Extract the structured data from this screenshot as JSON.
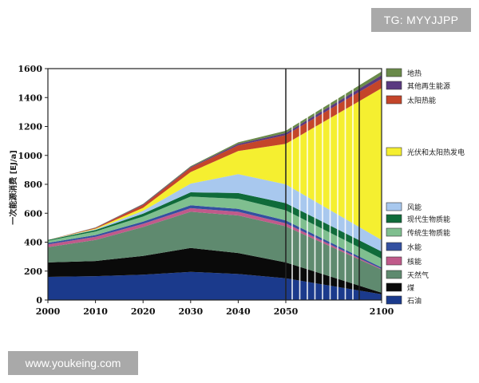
{
  "watermarks": {
    "top": "TG: MYYJJPP",
    "bottom": "www.youkeing.com"
  },
  "chart_data": {
    "type": "area",
    "stacked": true,
    "ylabel": "一次能源消费 [EJ/a]",
    "xlabel": "",
    "title": "",
    "x_ticks": [
      2000,
      2010,
      2020,
      2030,
      2040,
      2050,
      2100
    ],
    "y_ticks": [
      0,
      200,
      400,
      600,
      800,
      1000,
      1200,
      1400,
      1600
    ],
    "ylim": [
      0,
      1600
    ],
    "highlight_period": [
      2050,
      2100
    ],
    "x": [
      2000,
      2010,
      2020,
      2030,
      2040,
      2050,
      2100
    ],
    "series": [
      {
        "name": "石油",
        "color": "#1b3a8c",
        "values": [
          160,
          165,
          175,
          195,
          180,
          150,
          40
        ]
      },
      {
        "name": "煤",
        "color": "#0a0a0a",
        "values": [
          100,
          105,
          130,
          165,
          145,
          110,
          10
        ]
      },
      {
        "name": "天然气",
        "color": "#5f8a6f",
        "values": [
          105,
          145,
          200,
          250,
          260,
          250,
          160
        ]
      },
      {
        "name": "核能",
        "color": "#c05a8a",
        "values": [
          20,
          22,
          22,
          25,
          25,
          20,
          5
        ]
      },
      {
        "name": "水能",
        "color": "#3350a0",
        "values": [
          10,
          12,
          15,
          20,
          20,
          20,
          10
        ]
      },
      {
        "name": "传统生物质能",
        "color": "#7fbf8f",
        "values": [
          15,
          25,
          35,
          60,
          70,
          70,
          60
        ]
      },
      {
        "name": "现代生物质能",
        "color": "#0f6b3a",
        "values": [
          5,
          10,
          20,
          30,
          40,
          50,
          50
        ]
      },
      {
        "name": "风能",
        "color": "#a8c8ee",
        "values": [
          0,
          5,
          20,
          60,
          130,
          130,
          80
        ]
      },
      {
        "name": "光伏和太阳热发电",
        "color": "#f5ef30",
        "values": [
          0,
          5,
          20,
          80,
          160,
          280,
          1050
        ]
      },
      {
        "name": "太阳热能",
        "color": "#c4452a",
        "values": [
          0,
          5,
          20,
          30,
          40,
          60,
          65
        ]
      },
      {
        "name": "其他再生能源",
        "color": "#5a3a80",
        "values": [
          0,
          2,
          5,
          5,
          10,
          15,
          25
        ]
      },
      {
        "name": "地热",
        "color": "#6a8a4a",
        "values": [
          0,
          1,
          3,
          5,
          10,
          15,
          25
        ]
      }
    ],
    "legend": {
      "position": "right",
      "entries": [
        "地热",
        "其他再生能源",
        "太阳热能",
        "光伏和太阳热发电",
        "风能",
        "现代生物质能",
        "传统生物质能",
        "水能",
        "核能",
        "天然气",
        "煤",
        "石油"
      ]
    },
    "grid": false
  }
}
